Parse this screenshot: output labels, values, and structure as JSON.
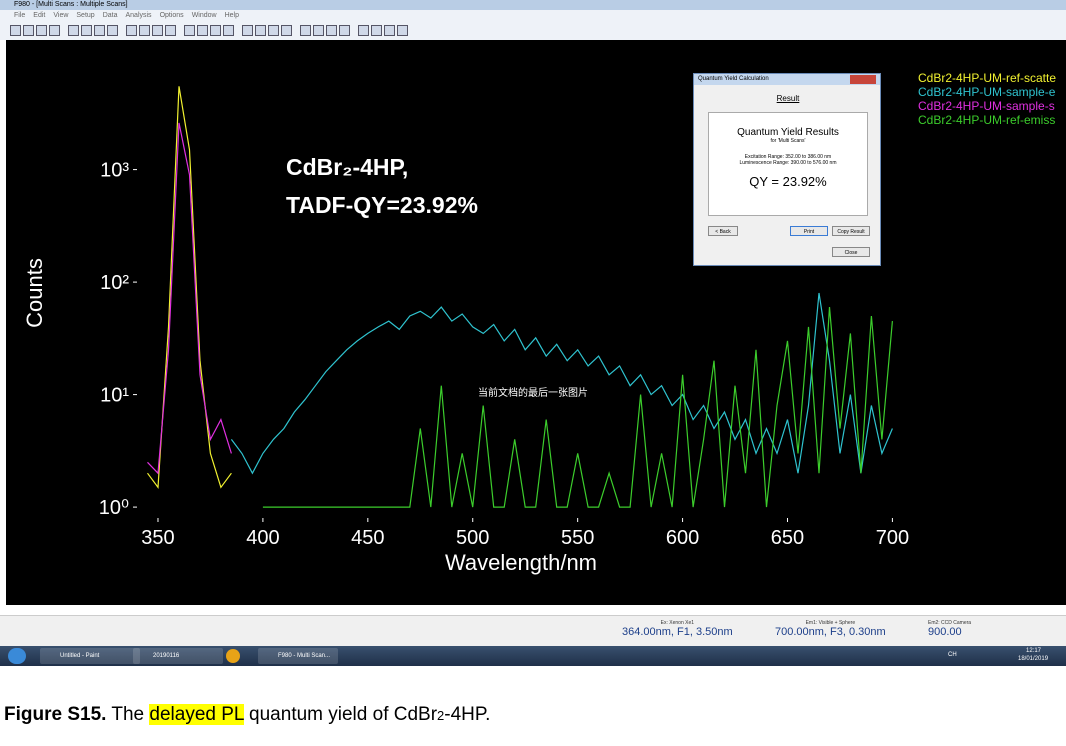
{
  "window": {
    "title": "F980 - [Multi Scans : Multiple Scans]",
    "menu": [
      "File",
      "Edit",
      "View",
      "Setup",
      "Data",
      "Analysis",
      "Options",
      "Window",
      "Help"
    ]
  },
  "chart_data": {
    "type": "line",
    "annotation": [
      "CdBr₂-4HP,",
      "TADF-QY=23.92%"
    ],
    "watermark": "当前文档的最后一张图片",
    "x_label": "Wavelength/nm",
    "y_label": "Counts",
    "log_y": true,
    "xlim": [
      340,
      706
    ],
    "xticks": [
      350,
      400,
      450,
      500,
      550,
      600,
      650,
      700
    ],
    "ylim": [
      0.8,
      8000
    ],
    "yticks": [
      {
        "value": 1,
        "label": "10⁰"
      },
      {
        "value": 10,
        "label": "10¹"
      },
      {
        "value": 100,
        "label": "10²"
      },
      {
        "value": 1000,
        "label": "10³"
      }
    ],
    "x": [
      345,
      350,
      355,
      360,
      365,
      370,
      375,
      380,
      385,
      390,
      395,
      400,
      405,
      410,
      415,
      420,
      425,
      430,
      435,
      440,
      445,
      450,
      455,
      460,
      465,
      470,
      475,
      480,
      485,
      490,
      495,
      500,
      505,
      510,
      515,
      520,
      525,
      530,
      535,
      540,
      545,
      550,
      555,
      560,
      565,
      570,
      575,
      580,
      585,
      590,
      595,
      600,
      605,
      610,
      615,
      620,
      625,
      630,
      635,
      640,
      645,
      650,
      655,
      660,
      665,
      670,
      675,
      680,
      685,
      690,
      695,
      700
    ],
    "series": [
      {
        "name": "CdBr2-4HP-UM-ref-scatte",
        "color": "#f2f230",
        "values": [
          2,
          1.5,
          40,
          5500,
          1500,
          20,
          3,
          1.5,
          2,
          null,
          null,
          null,
          null,
          null,
          null,
          null,
          null,
          null,
          null,
          null,
          null,
          null,
          null,
          null,
          null,
          null,
          null,
          null,
          null,
          null,
          null,
          null,
          null,
          null,
          null,
          null,
          null,
          null,
          null,
          null,
          null,
          null,
          null,
          null,
          null,
          null,
          null,
          null,
          null,
          null,
          null,
          null,
          null,
          null,
          null,
          null,
          null,
          null,
          null,
          null,
          null,
          null,
          null,
          null,
          null,
          null,
          null,
          null,
          null,
          null,
          null,
          null
        ]
      },
      {
        "name": "CdBr2-4HP-UM-sample-e",
        "color": "#2fc3cf",
        "values": [
          null,
          null,
          null,
          null,
          null,
          null,
          null,
          null,
          4,
          3,
          2,
          3,
          4,
          5,
          7,
          9,
          12,
          16,
          20,
          25,
          30,
          35,
          40,
          45,
          38,
          50,
          55,
          48,
          60,
          45,
          52,
          40,
          35,
          42,
          30,
          38,
          25,
          32,
          22,
          28,
          20,
          25,
          18,
          22,
          15,
          18,
          12,
          15,
          10,
          12,
          8,
          10,
          6,
          8,
          5,
          7,
          4,
          6,
          3,
          5,
          3,
          6,
          2,
          8,
          80,
          20,
          3,
          10,
          2,
          8,
          3,
          5
        ]
      },
      {
        "name": "CdBr2-4HP-UM-sample-s",
        "color": "#e030e0",
        "values": [
          2.5,
          2,
          25,
          2600,
          900,
          15,
          4,
          6,
          3,
          null,
          null,
          null,
          null,
          null,
          null,
          null,
          null,
          null,
          null,
          null,
          null,
          null,
          null,
          null,
          null,
          null,
          null,
          null,
          null,
          null,
          null,
          null,
          null,
          null,
          null,
          null,
          null,
          null,
          null,
          null,
          null,
          null,
          null,
          null,
          null,
          null,
          null,
          null,
          null,
          null,
          null,
          null,
          null,
          null,
          null,
          null,
          null,
          null,
          null,
          null,
          null,
          null,
          null,
          null,
          null,
          null,
          null,
          null,
          null,
          null,
          null,
          null
        ]
      },
      {
        "name": "CdBr2-4HP-UM-ref-emiss",
        "color": "#3ccd2c",
        "values": [
          null,
          null,
          null,
          null,
          null,
          null,
          null,
          null,
          null,
          null,
          null,
          1,
          1,
          1,
          1,
          1,
          1,
          1,
          1,
          1,
          1,
          1,
          1,
          1,
          1,
          1,
          5,
          1,
          12,
          1,
          3,
          1,
          8,
          1,
          1,
          4,
          1,
          1,
          6,
          1,
          1,
          3,
          1,
          1,
          2,
          1,
          1,
          10,
          1,
          3,
          1,
          15,
          1,
          4,
          20,
          1,
          12,
          2,
          25,
          1,
          8,
          30,
          3,
          40,
          2,
          60,
          5,
          35,
          2,
          50,
          4,
          45
        ]
      }
    ]
  },
  "dialog": {
    "title": "Quantum Yield Calculation",
    "tab": "Result",
    "heading": "Quantum Yield Results",
    "subheading": "for 'Multi Scans'",
    "excitation": "Excitation Range: 352.00 to 386.00 nm",
    "luminescence": "Luminescence Range: 390.00 to 576.00 nm",
    "qy": "QY = 23.92%",
    "buttons": [
      "< Back",
      "Print",
      "Copy Result",
      "Close"
    ]
  },
  "status_bar": [
    {
      "title": "Ex: Xenon Xe1",
      "value": "364.00nm, F1, 3.50nm"
    },
    {
      "title": "Em1: Visible + Sphere",
      "value": "700.00nm, F3, 0.30nm"
    },
    {
      "title": "Em2: CCD Camera",
      "value": "900.00"
    }
  ],
  "taskbar": {
    "items": [
      "Untitled - Paint",
      "20190116",
      "F980 - Multi Scan..."
    ],
    "lang": "CH",
    "time": "12:17",
    "date": "18/01/2019"
  },
  "caption": {
    "label": "Figure S15.",
    "pre": "The",
    "highlight": "delayed PL",
    "text": "quantum yield of CdBr",
    "sub": "2",
    "post": "-4HP."
  }
}
